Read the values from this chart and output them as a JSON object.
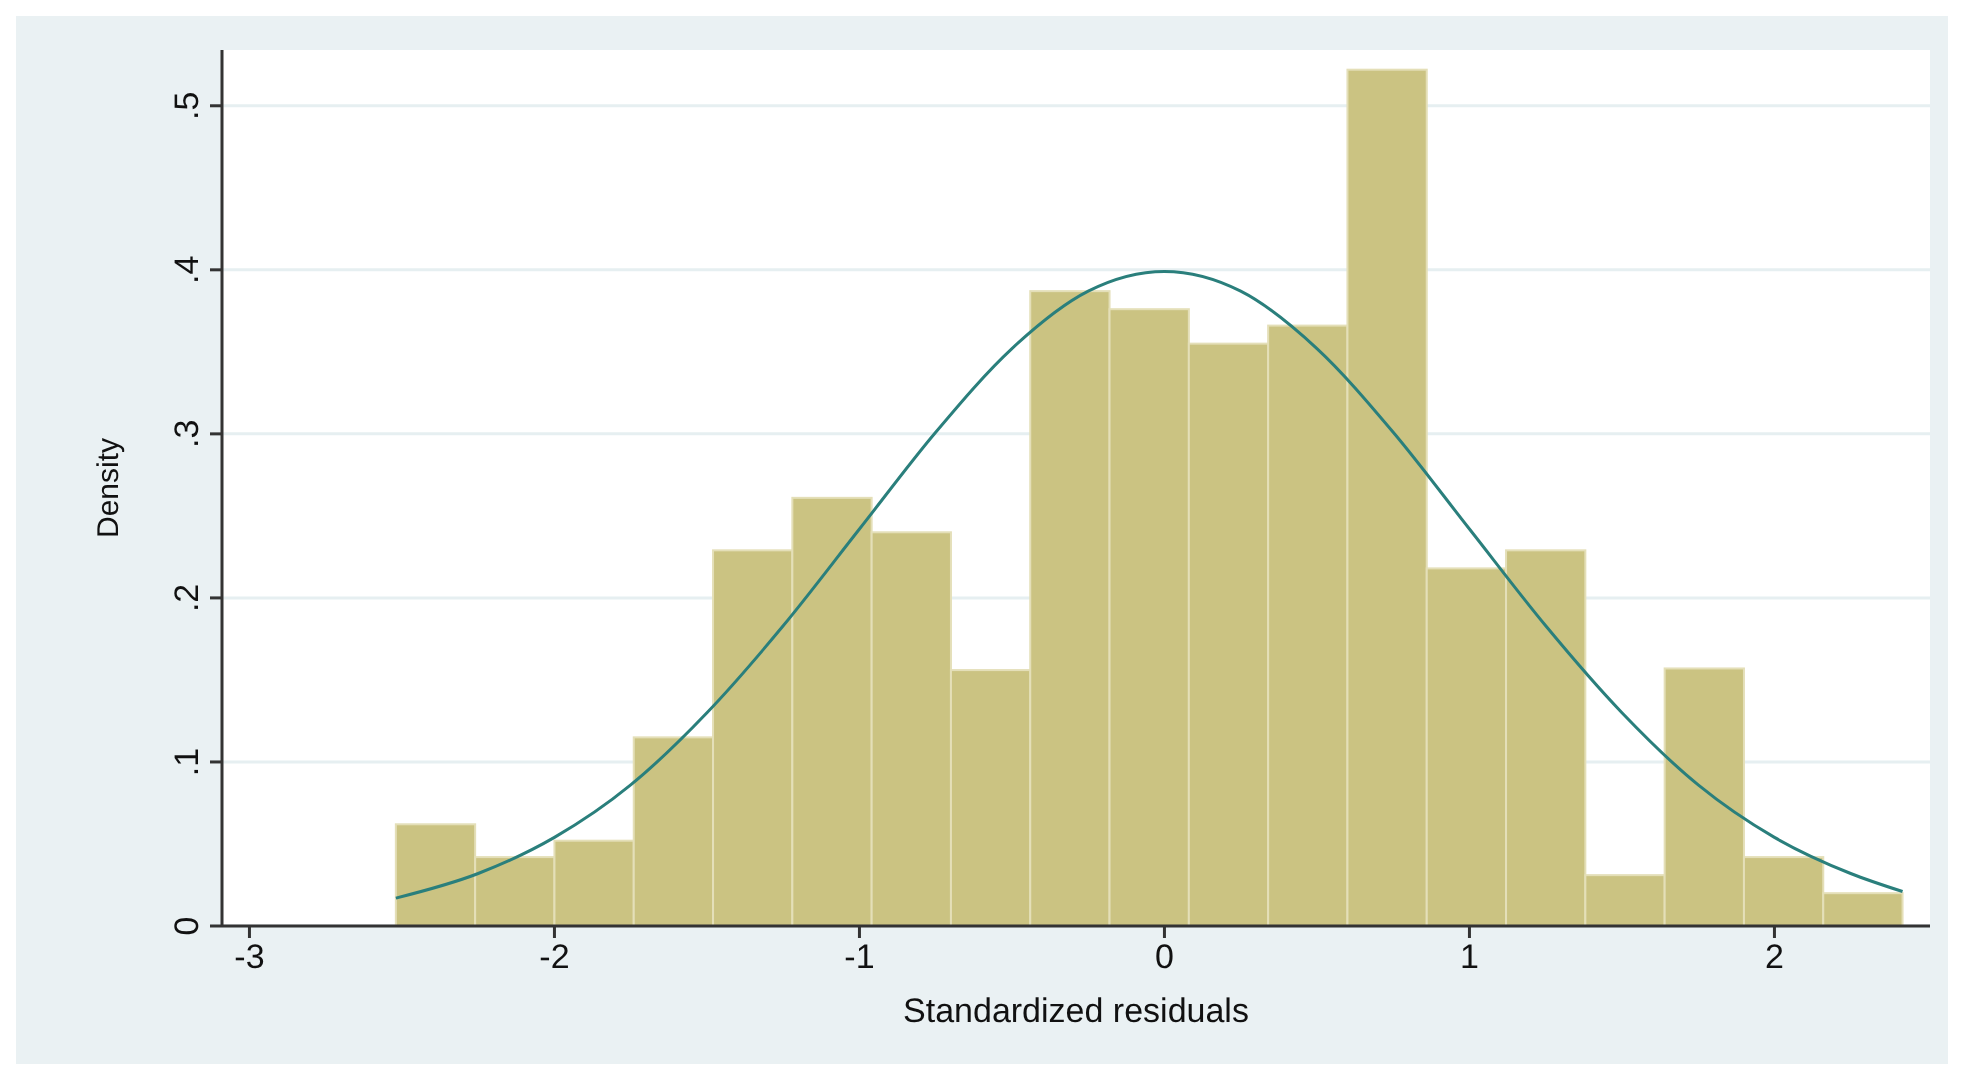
{
  "chart_data": {
    "type": "histogram",
    "xlabel": "Standardized residuals",
    "ylabel": "Density",
    "bins": [
      -2.52,
      -2.26,
      -2.0,
      -1.74,
      -1.48,
      -1.22,
      -0.96,
      -0.7,
      -0.44,
      -0.18,
      0.08,
      0.34,
      0.6,
      0.86,
      1.12,
      1.38,
      1.64,
      1.9,
      2.16,
      2.42
    ],
    "values": [
      0.062,
      0.042,
      0.052,
      0.115,
      0.229,
      0.261,
      0.24,
      0.156,
      0.387,
      0.376,
      0.355,
      0.366,
      0.522,
      0.218,
      0.229,
      0.031,
      0.157,
      0.042,
      0.02
    ],
    "color": "#cbc382",
    "series": [
      {
        "type": "line",
        "color": "#2a7f7c",
        "x": [
          -2.52,
          -2.25,
          -2,
          -1.75,
          -1.5,
          -1.25,
          -1,
          -0.75,
          -0.5,
          -0.25,
          0,
          0.25,
          0.5,
          0.75,
          1,
          1.25,
          1.5,
          1.75,
          2,
          2.25,
          2.42
        ],
        "values": [
          0.017,
          0.032,
          0.054,
          0.086,
          0.13,
          0.183,
          0.242,
          0.301,
          0.352,
          0.387,
          0.399,
          0.387,
          0.352,
          0.301,
          0.242,
          0.183,
          0.13,
          0.086,
          0.054,
          0.032,
          0.021
        ]
      }
    ],
    "xlim": [
      -3.09,
      2.51
    ],
    "xticks": [
      -3,
      -2,
      -1,
      0,
      1,
      2
    ],
    "ylim": [
      0,
      0.534
    ],
    "yticks": [
      0,
      {
        "value": 0.1,
        "label": ".1"
      },
      {
        "value": 0.2,
        "label": ".2"
      },
      {
        "value": 0.3,
        "label": ".3"
      },
      {
        "value": 0.4,
        "label": ".4"
      },
      {
        "value": 0.5,
        "label": ".5"
      }
    ],
    "grid": "y"
  }
}
